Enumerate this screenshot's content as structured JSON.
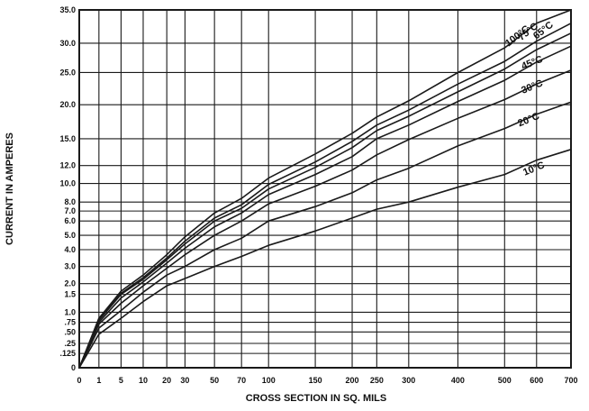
{
  "chart_data": {
    "type": "line",
    "title": "",
    "xlabel": "CROSS SECTION IN SQ. MILS",
    "ylabel": "CURRENT IN AMPERES",
    "x_ticks": [
      {
        "value": 0,
        "label": "0"
      },
      {
        "value": 1,
        "label": "1"
      },
      {
        "value": 5,
        "label": "5"
      },
      {
        "value": 10,
        "label": "10"
      },
      {
        "value": 20,
        "label": "20"
      },
      {
        "value": 30,
        "label": "30"
      },
      {
        "value": 50,
        "label": "50"
      },
      {
        "value": 70,
        "label": "70"
      },
      {
        "value": 100,
        "label": "100"
      },
      {
        "value": 150,
        "label": "150"
      },
      {
        "value": 200,
        "label": "200"
      },
      {
        "value": 250,
        "label": "250"
      },
      {
        "value": 300,
        "label": "300"
      },
      {
        "value": 400,
        "label": "400"
      },
      {
        "value": 500,
        "label": "500"
      },
      {
        "value": 600,
        "label": "600"
      },
      {
        "value": 700,
        "label": "700"
      }
    ],
    "y_ticks": [
      {
        "value": 0,
        "label": "0"
      },
      {
        "value": 0.125,
        "label": ".125"
      },
      {
        "value": 0.25,
        "label": ".25"
      },
      {
        "value": 0.5,
        "label": ".50"
      },
      {
        "value": 0.75,
        "label": ".75"
      },
      {
        "value": 1.0,
        "label": "1.0"
      },
      {
        "value": 1.5,
        "label": "1.5"
      },
      {
        "value": 2.0,
        "label": "2.0"
      },
      {
        "value": 3.0,
        "label": "3.0"
      },
      {
        "value": 4.0,
        "label": "4.0"
      },
      {
        "value": 5.0,
        "label": "5.0"
      },
      {
        "value": 6.0,
        "label": "6.0"
      },
      {
        "value": 7.0,
        "label": "7.0"
      },
      {
        "value": 8.0,
        "label": "8.0"
      },
      {
        "value": 10.0,
        "label": "10.0"
      },
      {
        "value": 12.0,
        "label": "12.0"
      },
      {
        "value": 15.0,
        "label": "15.0"
      },
      {
        "value": 20.0,
        "label": "20.0"
      },
      {
        "value": 25.0,
        "label": "25.0"
      },
      {
        "value": 30.0,
        "label": "30.0"
      },
      {
        "value": 35.0,
        "label": "35.0"
      }
    ],
    "series": [
      {
        "name": "10°C",
        "points": [
          [
            0,
            0
          ],
          [
            1,
            0.45
          ],
          [
            5,
            0.85
          ],
          [
            10,
            1.3
          ],
          [
            20,
            1.9
          ],
          [
            30,
            2.3
          ],
          [
            50,
            3.0
          ],
          [
            70,
            3.6
          ],
          [
            100,
            4.3
          ],
          [
            150,
            5.3
          ],
          [
            200,
            6.3
          ],
          [
            250,
            7.2
          ],
          [
            300,
            8.0
          ],
          [
            400,
            9.6
          ],
          [
            500,
            11.0
          ],
          [
            600,
            12.6
          ],
          [
            700,
            13.8
          ]
        ]
      },
      {
        "name": "20°C",
        "points": [
          [
            0,
            0
          ],
          [
            1,
            0.6
          ],
          [
            5,
            1.05
          ],
          [
            10,
            1.6
          ],
          [
            20,
            2.5
          ],
          [
            30,
            3.0
          ],
          [
            50,
            4.0
          ],
          [
            70,
            4.8
          ],
          [
            100,
            6.0
          ],
          [
            150,
            7.5
          ],
          [
            200,
            9.0
          ],
          [
            250,
            10.4
          ],
          [
            300,
            11.7
          ],
          [
            400,
            14.2
          ],
          [
            500,
            16.5
          ],
          [
            600,
            18.6
          ],
          [
            700,
            20.4
          ]
        ]
      },
      {
        "name": "30°C",
        "points": [
          [
            0,
            0
          ],
          [
            1,
            0.7
          ],
          [
            5,
            1.25
          ],
          [
            10,
            1.9
          ],
          [
            20,
            2.9
          ],
          [
            30,
            3.7
          ],
          [
            50,
            5.0
          ],
          [
            70,
            6.0
          ],
          [
            100,
            7.8
          ],
          [
            150,
            9.7
          ],
          [
            200,
            11.5
          ],
          [
            250,
            13.2
          ],
          [
            300,
            14.9
          ],
          [
            400,
            18.0
          ],
          [
            500,
            20.8
          ],
          [
            600,
            23.2
          ],
          [
            700,
            25.4
          ]
        ]
      },
      {
        "name": "45°C",
        "points": [
          [
            0,
            0
          ],
          [
            1,
            0.75
          ],
          [
            5,
            1.4
          ],
          [
            10,
            2.1
          ],
          [
            20,
            3.2
          ],
          [
            30,
            4.1
          ],
          [
            50,
            5.6
          ],
          [
            70,
            6.8
          ],
          [
            100,
            8.8
          ],
          [
            150,
            11.0
          ],
          [
            200,
            13.0
          ],
          [
            250,
            15.0
          ],
          [
            300,
            17.0
          ],
          [
            400,
            20.5
          ],
          [
            500,
            23.8
          ],
          [
            600,
            26.8
          ],
          [
            700,
            29.5
          ]
        ]
      },
      {
        "name": "65°C",
        "points": [
          [
            0,
            0
          ],
          [
            1,
            0.8
          ],
          [
            5,
            1.5
          ],
          [
            10,
            2.25
          ],
          [
            20,
            3.4
          ],
          [
            30,
            4.4
          ],
          [
            50,
            6.0
          ],
          [
            70,
            7.3
          ],
          [
            100,
            9.4
          ],
          [
            150,
            11.8
          ],
          [
            200,
            14.0
          ],
          [
            250,
            16.2
          ],
          [
            300,
            18.3
          ],
          [
            400,
            22.0
          ],
          [
            500,
            25.6
          ],
          [
            600,
            28.9
          ],
          [
            700,
            31.5
          ]
        ]
      },
      {
        "name": "75°C",
        "points": [
          [
            0,
            0
          ],
          [
            1,
            0.82
          ],
          [
            5,
            1.55
          ],
          [
            10,
            2.35
          ],
          [
            20,
            3.5
          ],
          [
            30,
            4.6
          ],
          [
            50,
            6.3
          ],
          [
            70,
            7.7
          ],
          [
            100,
            9.9
          ],
          [
            150,
            12.4
          ],
          [
            200,
            14.7
          ],
          [
            250,
            17.0
          ],
          [
            300,
            19.2
          ],
          [
            400,
            23.2
          ],
          [
            500,
            26.9
          ],
          [
            600,
            30.3
          ],
          [
            700,
            33.0
          ]
        ]
      },
      {
        "name": "100°C",
        "points": [
          [
            0,
            0
          ],
          [
            1,
            0.85
          ],
          [
            5,
            1.65
          ],
          [
            10,
            2.5
          ],
          [
            20,
            3.7
          ],
          [
            30,
            4.9
          ],
          [
            50,
            6.8
          ],
          [
            70,
            8.4
          ],
          [
            100,
            10.6
          ],
          [
            150,
            13.3
          ],
          [
            200,
            15.8
          ],
          [
            250,
            18.2
          ],
          [
            300,
            20.6
          ],
          [
            400,
            25.0
          ],
          [
            500,
            29.2
          ],
          [
            600,
            33.0
          ],
          [
            700,
            35.0
          ]
        ]
      }
    ],
    "curve_labels": [
      {
        "text": "100°C",
        "x": 580,
        "y": 32.0,
        "angle": -38
      },
      {
        "text": "75°C",
        "x": 606,
        "y": 32.4,
        "angle": -38
      },
      {
        "text": "65°C",
        "x": 650,
        "y": 32.6,
        "angle": -38
      },
      {
        "text": "45°C",
        "x": 620,
        "y": 26.9,
        "angle": -22
      },
      {
        "text": "30°C",
        "x": 620,
        "y": 23.0,
        "angle": -22
      },
      {
        "text": "20°C",
        "x": 610,
        "y": 18.0,
        "angle": -22
      },
      {
        "text": "10°C",
        "x": 625,
        "y": 11.8,
        "angle": -22
      }
    ],
    "xlim": [
      0,
      700
    ],
    "ylim": [
      0,
      35
    ],
    "grid": true,
    "colors": {
      "line": "#1a1a1a",
      "grid": "#1a1a1a",
      "background": "#ffffff"
    }
  }
}
